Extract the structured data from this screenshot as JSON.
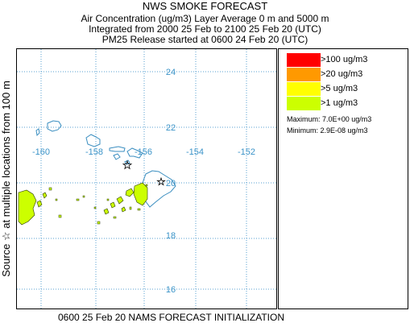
{
  "header": {
    "title": "NWS SMOKE FORECAST",
    "line2": "Air Concentration (ug/m3) Layer Average    0 m and  5000 m",
    "line3": "Integrated from 2000 25 Feb to 2100 25 Feb 20 (UTC)",
    "line4": "PM25 Release started at 0600 24 Feb 20 (UTC)"
  },
  "side_label": "Source ☆    at multiple locations    from   100 m",
  "map": {
    "lat_labels": [
      "24",
      "22",
      "20",
      "18",
      "16"
    ],
    "lon_labels": [
      "-160",
      "-158",
      "-156",
      "-154",
      "-152"
    ],
    "label_color": "#3a93c8",
    "coast_color": "#3a8ec0",
    "grid_color": "#5aa0d0"
  },
  "legend": {
    "items": [
      {
        "label": ">100 ug/m3",
        "color": "#ff0000"
      },
      {
        "label": ">20 ug/m3",
        "color": "#ff9900"
      },
      {
        "label": ">5 ug/m3",
        "color": "#ffff00"
      },
      {
        "label": ">1 ug/m3",
        "color": "#ccff00"
      }
    ],
    "maximum": "Maximum: 7.0E+00 ug/m3",
    "minimum": "Minimum: 2.9E-08 ug/m3"
  },
  "footer": "0600 25 Feb 20 NAMS FORECAST INITIALIZATION"
}
